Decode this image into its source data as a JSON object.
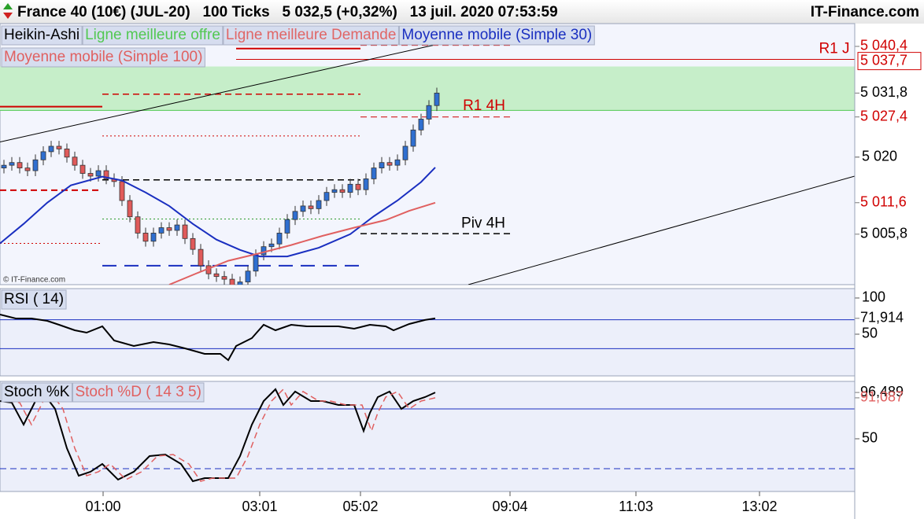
{
  "header": {
    "title": "France 40 (10€) (JUL-20)   100 Ticks   5 032,5 (+0,32%)   13 juil. 2020 07:53:59",
    "brand": "IT-Finance.com"
  },
  "chart_data": [
    {
      "type": "candlestick",
      "legend": [
        {
          "name": "Heikin-Ashi",
          "color": "#000000"
        },
        {
          "name": "Ligne meilleure offre",
          "color": "#52c852"
        },
        {
          "name": "Ligne meilleure Demande",
          "color": "#e06666"
        }
      ],
      "watermark": "© IT-Finance.com",
      "open": [
        5018,
        5018.5,
        5019,
        5018,
        5017.5,
        5019.5,
        5021,
        5022,
        5021.5,
        5020,
        5018.5,
        5017,
        5016.5,
        5017.5,
        5016,
        5015.5,
        5012,
        5009,
        5006,
        5004.5,
        5006,
        5007,
        5006.5,
        5007.5,
        5005,
        5003,
        5000,
        4998.5,
        4998,
        4997.5,
        4996,
        4997,
        4999,
        5002,
        5003.5,
        5004,
        5006,
        5008.5,
        5010,
        5011,
        5010.5,
        5012,
        5013.5,
        5014,
        5013.5,
        5015,
        5014,
        5016,
        5018,
        5019,
        5018.5,
        5019.5,
        5022,
        5025,
        5027,
        5029.5
      ],
      "high": [
        5019.5,
        5020,
        5020,
        5019,
        5020.5,
        5022,
        5023,
        5023,
        5022.5,
        5021,
        5019.5,
        5018,
        5018.5,
        5018.5,
        5017,
        5016.5,
        5013,
        5010,
        5007,
        5007,
        5008,
        5008,
        5008.5,
        5008.5,
        5006,
        5004,
        5001,
        4999.5,
        4999,
        4998.5,
        4998,
        5000,
        5003,
        5004.5,
        5005,
        5007,
        5009.5,
        5011,
        5012,
        5012,
        5013,
        5014.5,
        5015,
        5015,
        5016,
        5016,
        5017,
        5019,
        5020,
        5020,
        5020.5,
        5023,
        5026,
        5028,
        5030.5,
        5032.8
      ],
      "low": [
        5017,
        5017.5,
        5017,
        5016.5,
        5016.5,
        5018.5,
        5020,
        5020.5,
        5019,
        5017.5,
        5016,
        5015.5,
        5015.5,
        5015,
        5014.5,
        5011,
        5008,
        5005,
        5003.5,
        5003.5,
        5005,
        5005.5,
        5005.5,
        5004,
        5002,
        4999,
        4997.5,
        4997,
        4996.5,
        4995,
        4995,
        4996,
        4998,
        5001,
        5002.5,
        5003,
        5005,
        5007.5,
        5009,
        5009.5,
        5009.5,
        5011,
        5012.5,
        5012.5,
        5012.5,
        5013,
        5013,
        5015,
        5017,
        5017.5,
        5017.5,
        5018.5,
        5021,
        5024,
        5026,
        5028.5
      ],
      "close": [
        5018.5,
        5019,
        5018,
        5017.5,
        5019.5,
        5021,
        5022,
        5021.5,
        5020,
        5018.5,
        5017,
        5016.5,
        5017.5,
        5016,
        5015.5,
        5012,
        5009,
        5006,
        5004.5,
        5006,
        5007,
        5006.5,
        5007.5,
        5005,
        5003,
        5000,
        4998.5,
        4998,
        4997.5,
        4996,
        4997,
        4999,
        5002,
        5003.5,
        5004,
        5006,
        5008.5,
        5010,
        5011,
        5010.5,
        5012,
        5013.5,
        5014,
        5013.5,
        5015,
        5014,
        5016,
        5018,
        5019,
        5018.5,
        5019.5,
        5022,
        5025,
        5027,
        5029.5,
        5031.8
      ],
      "up_color": "#2f6fd0",
      "down_color": "#e05a5a",
      "series": [
        {
          "name": "Moyenne mobile (Simple 30)",
          "color": "#1a2fc0",
          "x": [
            -0.5,
            2.5,
            5.5,
            8.5,
            12.5,
            15,
            18,
            21,
            24,
            27,
            30,
            32.5,
            36,
            40,
            44,
            47,
            50,
            53,
            54.8
          ],
          "values": [
            5004.1,
            5007.7,
            5011.6,
            5014.8,
            5016.4,
            5015.7,
            5013.5,
            5011.0,
            5007.7,
            5004.8,
            5002.9,
            5001.7,
            5001.7,
            5003.3,
            5005.8,
            5009.1,
            5012.0,
            5015.4,
            5018.1
          ]
        },
        {
          "name": "Moyenne mobile (Simple 100)",
          "color": "#e06060",
          "x": [
            21,
            24.5,
            28.5,
            32.5,
            36.5,
            40.5,
            44.5,
            48.5,
            51.5,
            54.8
          ],
          "values": [
            4996.5,
            4998.6,
            5000.9,
            5002.3,
            5003.8,
            5005.5,
            5007.0,
            5008.4,
            5010.1,
            5011.6
          ]
        }
      ],
      "zone": {
        "from": 5028.6,
        "to": 5036.7,
        "color": "#c6eec9"
      },
      "levels": [
        {
          "value": 5040,
          "x": [
            29.5,
            45.3
          ],
          "color": "#d00000",
          "style": "solid",
          "width": 2
        },
        {
          "value": 5040.6,
          "x": [
            45.3,
            64.3
          ],
          "color": "#d00000",
          "style": "dashed",
          "width": 1
        },
        {
          "value": 5038,
          "x": [
            29.5,
            108.1
          ],
          "color": "#d00000",
          "style": "solid",
          "width": 1
        },
        {
          "value": 5029.3,
          "x": [
            -0.5,
            12.5
          ],
          "color": "#d00000",
          "style": "solid",
          "width": 2
        },
        {
          "value": 5031.6,
          "x": [
            12.5,
            45.3
          ],
          "color": "#d00000",
          "style": "dashed",
          "width": 1.5
        },
        {
          "value": 5023.9,
          "x": [
            12.5,
            45.3
          ],
          "color": "#d00000",
          "style": "dotted",
          "width": 1
        },
        {
          "value": 5027.4,
          "x": [
            45.3,
            64.3
          ],
          "color": "#d00000",
          "style": "dashed",
          "width": 1
        },
        {
          "value": 5013.9,
          "x": [
            -0.5,
            12.5
          ],
          "color": "#d00000",
          "style": "dashed",
          "width": 2
        },
        {
          "value": 5015.8,
          "x": [
            12.5,
            45.3
          ],
          "color": "#000000",
          "style": "dashed",
          "width": 1.5
        },
        {
          "value": 5008.6,
          "x": [
            12.5,
            45.3
          ],
          "color": "#2a9a2a",
          "style": "dotted",
          "width": 1
        },
        {
          "value": 5005.9,
          "x": [
            45.3,
            64.3
          ],
          "color": "#000000",
          "style": "dashed",
          "width": 1.5
        },
        {
          "value": 5004.1,
          "x": [
            -0.5,
            12.5
          ],
          "color": "#d00000",
          "style": "dotted",
          "width": 1
        },
        {
          "value": 5000,
          "x": [
            12.5,
            45.3
          ],
          "color": "#1a2fc0",
          "style": "long-dashed",
          "width": 2
        }
      ],
      "trendlines": [
        {
          "x": [
            -0.5,
            54.5
          ],
          "values": [
            5022.8,
            5040.6
          ],
          "color": "#000000"
        },
        {
          "x": [
            59,
            108.1
          ],
          "values": [
            4996.5,
            5016.5
          ],
          "color": "#000000"
        }
      ],
      "annotations": [
        {
          "text": "R1 4H",
          "x": 61,
          "value": 5029.4,
          "color": "#d00000"
        },
        {
          "text": "Piv 4H",
          "x": 60.9,
          "value": 5007.7,
          "color": "#000000"
        },
        {
          "text": "R1 J",
          "x": 105.5,
          "value": 5039.9,
          "color": "#d00000"
        }
      ],
      "markers": [
        {
          "value": 5040.4,
          "label": "5 040,4",
          "color": "#d00000",
          "boxed": false
        },
        {
          "value": 5037.7,
          "label": "5 037,7",
          "color": "#d00000",
          "boxed": true
        },
        {
          "value": 5031.8,
          "label": "5 031,8",
          "color": "#000000",
          "boxed": false
        },
        {
          "value": 5027.4,
          "label": "5 027,4",
          "color": "#d00000",
          "boxed": false
        },
        {
          "value": 5011.6,
          "label": "5 011,6",
          "color": "#d00000",
          "boxed": false
        },
        {
          "value": 5005.8,
          "label": "5 005,8",
          "color": "#000000",
          "boxed": false
        }
      ],
      "ylim": [
        4996.5,
        5044.6
      ],
      "yticks": [
        {
          "value": 5020,
          "label": "5 020"
        }
      ]
    },
    {
      "type": "line",
      "title": "RSI ( 14)",
      "series": [
        {
          "name": "RSI",
          "color": "#000000",
          "x": [
            -0.5,
            1.5,
            3.5,
            5.5,
            7,
            9,
            10.5,
            12.5,
            14,
            16.5,
            19,
            21,
            23,
            25.5,
            27.5,
            28.5,
            29.5,
            31.5,
            33,
            34.5,
            36.5,
            38.5,
            40.5,
            42.5,
            44.5,
            46.5,
            48.5,
            49.5,
            51.5,
            53.5,
            54.8
          ],
          "values": [
            77.2,
            71.7,
            71.7,
            68.5,
            63.0,
            55.4,
            52.2,
            60.9,
            41.3,
            33.7,
            39.1,
            35.9,
            30.4,
            22.8,
            22.8,
            14.1,
            33.7,
            44.6,
            63.0,
            55.4,
            63.0,
            60.9,
            60.9,
            60.9,
            57.6,
            63.0,
            60.9,
            55.4,
            64.1,
            69.6,
            71.914
          ]
        }
      ],
      "levels": [
        {
          "value": 70,
          "color": "#1a2fc0",
          "style": "solid"
        },
        {
          "value": 30,
          "color": "#1a2fc0",
          "style": "solid"
        }
      ],
      "markers": [
        {
          "value": 71.914,
          "label": "71,914",
          "color": "#000000"
        }
      ],
      "ylim": [
        -7.6,
        113
      ],
      "yticks": [
        100,
        50
      ]
    },
    {
      "type": "line",
      "series": [
        {
          "name": "Stoch %K",
          "color": "#000000",
          "style": "solid",
          "x": [
            -0.5,
            1,
            2.5,
            4,
            5,
            6.5,
            8,
            9.5,
            11,
            12.5,
            14.5,
            16.5,
            18.5,
            20.5,
            22.5,
            24,
            25.5,
            28.5,
            30,
            31.5,
            33,
            34.5,
            35.5,
            37,
            39,
            40.5,
            42.5,
            44.5,
            45.7,
            46.5,
            47.5,
            49,
            50.5,
            52,
            53.5,
            54.8
          ],
          "values": [
            87.9,
            86.3,
            64.2,
            87.9,
            95.8,
            80.0,
            40.5,
            12.9,
            16.9,
            24.7,
            9.0,
            16.9,
            32.6,
            34.2,
            24.7,
            7.4,
            10.5,
            10.5,
            32.6,
            64.2,
            87.9,
            99.7,
            83.9,
            97.4,
            87.9,
            87.9,
            83.9,
            83.9,
            57.9,
            76.0,
            91.8,
            97.4,
            80.0,
            87.9,
            91.8,
            96.489
          ]
        },
        {
          "name": "Stoch %D ( 14 3 5)",
          "color": "#e06060",
          "style": "dashed",
          "x": [
            0.5,
            2,
            3.5,
            5,
            6,
            7.5,
            9,
            10.5,
            12,
            13.5,
            15.5,
            17.5,
            19.5,
            21.5,
            23.5,
            25,
            26.5,
            29.5,
            31,
            32.5,
            34,
            35.5,
            36.5,
            38,
            40,
            41.5,
            43.5,
            45.5,
            46.7,
            47.5,
            48.5,
            50,
            51.5,
            53,
            54.8
          ],
          "values": [
            87.9,
            86.3,
            64.2,
            87.9,
            95.8,
            80.0,
            40.5,
            12.9,
            16.9,
            24.7,
            9.0,
            16.9,
            32.6,
            34.2,
            24.7,
            7.4,
            10.5,
            10.5,
            32.6,
            64.2,
            87.9,
            99.7,
            83.9,
            97.4,
            87.9,
            87.9,
            83.9,
            83.9,
            57.9,
            76.0,
            91.8,
            97.4,
            80.0,
            87.9,
            91.087
          ]
        }
      ],
      "levels": [
        {
          "value": 80,
          "color": "#1a2fc0",
          "style": "solid"
        },
        {
          "value": 20,
          "color": "#1a2fc0",
          "style": "dashed"
        }
      ],
      "markers": [
        {
          "value": 96.489,
          "label": "96,489",
          "color": "#000000"
        },
        {
          "value": 91.087,
          "label": "91,087",
          "color": "#e06060"
        }
      ],
      "ylim": [
        -2.9,
        107.6
      ],
      "yticks": [
        50
      ],
      "xlim": [
        -0.5,
        108.1
      ],
      "xticks": [
        {
          "value": 12.6,
          "label": "01:00"
        },
        {
          "value": 32.5,
          "label": "03:01"
        },
        {
          "value": 45.3,
          "label": "05:02"
        },
        {
          "value": 64.3,
          "label": "09:04"
        },
        {
          "value": 80.3,
          "label": "11:03"
        },
        {
          "value": 96,
          "label": "13:02"
        }
      ]
    }
  ]
}
